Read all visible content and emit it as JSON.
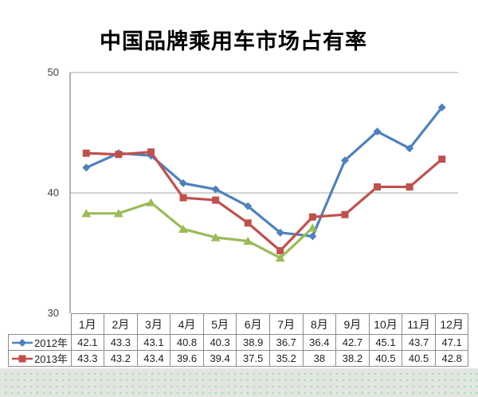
{
  "title": "中国品牌乘用车市场占有率",
  "colors": {
    "series_2012": "#4F81BD",
    "series_2013": "#C0504D",
    "series_green_unlabeled": "#9BBB59",
    "gridline": "#a6a6a6",
    "axis_line": "#7f7f7f",
    "table_border": "#8c8c8c",
    "text": "#1f1f1f",
    "chart_background": "#ffffff",
    "desktop_texture_base": "#e3e5e3",
    "desktop_texture_dot": "#8ee88e"
  },
  "y_axis": {
    "tick_labels": [
      "50",
      "40",
      "30"
    ],
    "tick_values": [
      50,
      40,
      30
    ]
  },
  "chart_data": {
    "type": "line",
    "title": "中国品牌乘用车市场占有率",
    "categories": [
      "1月",
      "2月",
      "3月",
      "4月",
      "5月",
      "6月",
      "7月",
      "8月",
      "9月",
      "10月",
      "11月",
      "12月"
    ],
    "ylim": [
      30,
      50
    ],
    "grid": "horizontal",
    "legend_position": "data-table-left-column",
    "series": [
      {
        "name": "2012年",
        "color": "#4F81BD",
        "marker": "diamond",
        "shown_in_table": true,
        "values": [
          42.1,
          43.3,
          43.1,
          40.8,
          40.3,
          38.9,
          36.7,
          36.4,
          42.7,
          45.1,
          43.7,
          47.1
        ]
      },
      {
        "name": "2013年",
        "color": "#C0504D",
        "marker": "square",
        "shown_in_table": true,
        "values": [
          43.3,
          43.2,
          43.4,
          39.6,
          39.4,
          37.5,
          35.2,
          38,
          38.2,
          40.5,
          40.5,
          42.8
        ]
      },
      {
        "name": "",
        "color": "#9BBB59",
        "marker": "triangle",
        "shown_in_table": false,
        "note": "unlabeled green series, plotted Jan-Aug only; values estimated from pixels",
        "values": [
          38.3,
          38.3,
          39.2,
          37.0,
          36.3,
          36.0,
          34.6,
          37.1,
          null,
          null,
          null,
          null
        ]
      }
    ]
  },
  "table": {
    "header": [
      "1月",
      "2月",
      "3月",
      "4月",
      "5月",
      "6月",
      "7月",
      "8月",
      "9月",
      "10月",
      "11月",
      "12月"
    ],
    "rows": [
      {
        "label": "2012年",
        "marker": "diamond",
        "color": "#4F81BD",
        "values": [
          "42.1",
          "43.3",
          "43.1",
          "40.8",
          "40.3",
          "38.9",
          "36.7",
          "36.4",
          "42.7",
          "45.1",
          "43.7",
          "47.1"
        ]
      },
      {
        "label": "2013年",
        "marker": "square",
        "color": "#C0504D",
        "values": [
          "43.3",
          "43.2",
          "43.4",
          "39.6",
          "39.4",
          "37.5",
          "35.2",
          "38",
          "38.2",
          "40.5",
          "40.5",
          "42.8"
        ]
      }
    ]
  }
}
